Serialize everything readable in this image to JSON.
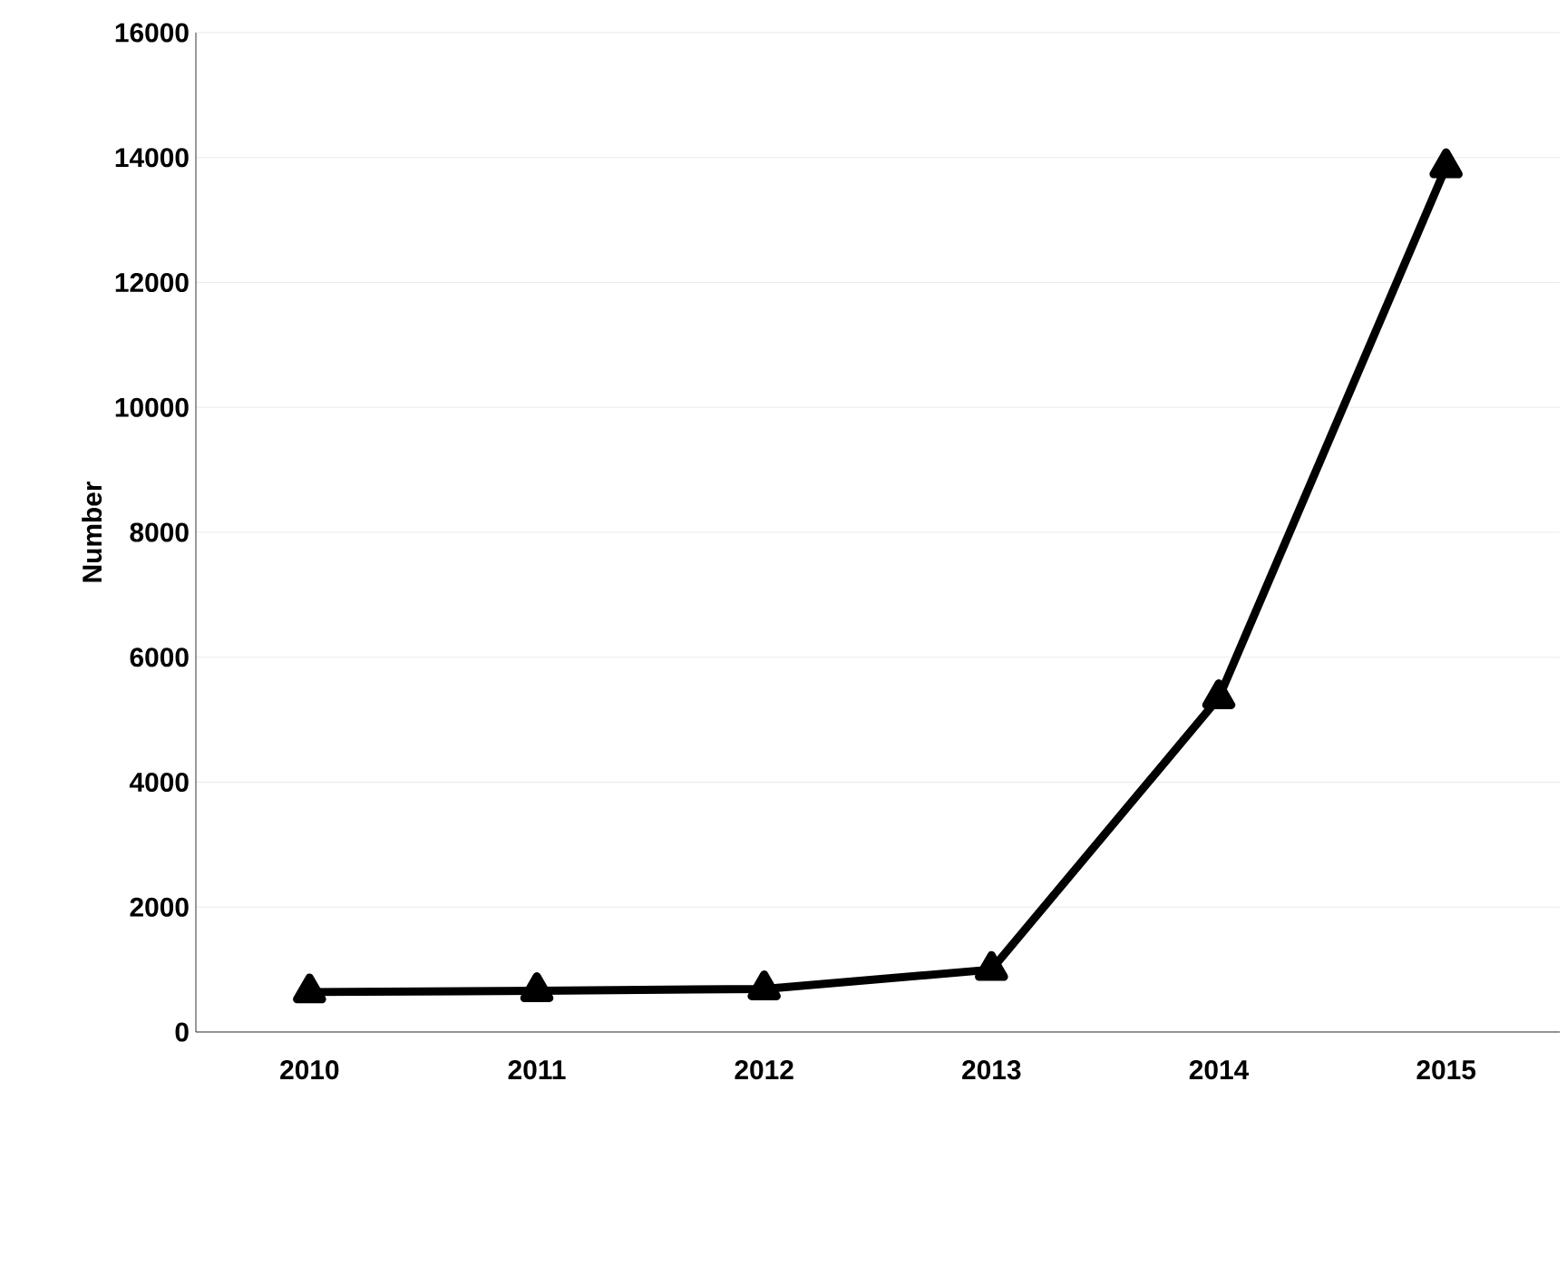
{
  "chart_data": {
    "type": "line",
    "ylabel": "Number",
    "categories": [
      "2010",
      "2011",
      "2012",
      "2013",
      "2014",
      "2015"
    ],
    "series": [
      {
        "color": "#000000",
        "values": [
          640,
          660,
          690,
          1000,
          5350,
          13850
        ]
      }
    ],
    "ylim": [
      0,
      16000
    ],
    "yticks": [
      0,
      2000,
      4000,
      6000,
      8000,
      10000,
      12000,
      14000,
      16000
    ],
    "grid": "y",
    "marker": "triangle",
    "line_style": "solid"
  }
}
